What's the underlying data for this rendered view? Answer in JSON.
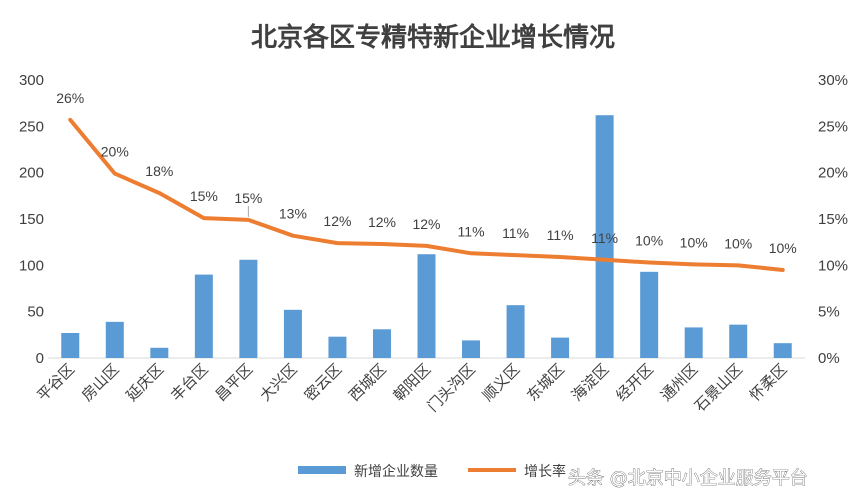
{
  "chart_data": {
    "type": "bar",
    "title": "北京各区专精特新企业增长情况",
    "categories": [
      "平谷区",
      "房山区",
      "延庆区",
      "丰台区",
      "昌平区",
      "大兴区",
      "密云区",
      "西城区",
      "朝阳区",
      "门头沟区",
      "顺义区",
      "东城区",
      "海淀区",
      "经开区",
      "通州区",
      "石景山区",
      "怀柔区"
    ],
    "series": [
      {
        "name": "新增企业数量",
        "type": "bar",
        "axis": "left",
        "color": "#5B9BD5",
        "values": [
          27,
          39,
          11,
          90,
          106,
          52,
          23,
          31,
          112,
          19,
          57,
          22,
          262,
          93,
          33,
          36,
          16
        ]
      },
      {
        "name": "增长率",
        "type": "line",
        "axis": "right",
        "color": "#ED7D31",
        "values": [
          0.257,
          0.199,
          0.178,
          0.151,
          0.149,
          0.132,
          0.124,
          0.123,
          0.121,
          0.113,
          0.111,
          0.109,
          0.106,
          0.103,
          0.101,
          0.1,
          0.095
        ],
        "labels": [
          "26%",
          "20%",
          "18%",
          "15%",
          "15%",
          "13%",
          "12%",
          "12%",
          "12%",
          "11%",
          "11%",
          "11%",
          "11%",
          "10%",
          "10%",
          "10%",
          "10%"
        ]
      }
    ],
    "y_left": {
      "range": [
        0,
        300
      ],
      "ticks": [
        "0",
        "50",
        "100",
        "150",
        "200",
        "250",
        "300"
      ]
    },
    "y_right": {
      "range": [
        0,
        0.3
      ],
      "ticks": [
        "0%",
        "5%",
        "10%",
        "15%",
        "20%",
        "25%",
        "30%"
      ]
    },
    "grid": false,
    "legend_position": "bottom"
  },
  "watermark": "头条 @北京中小企业服务平台"
}
